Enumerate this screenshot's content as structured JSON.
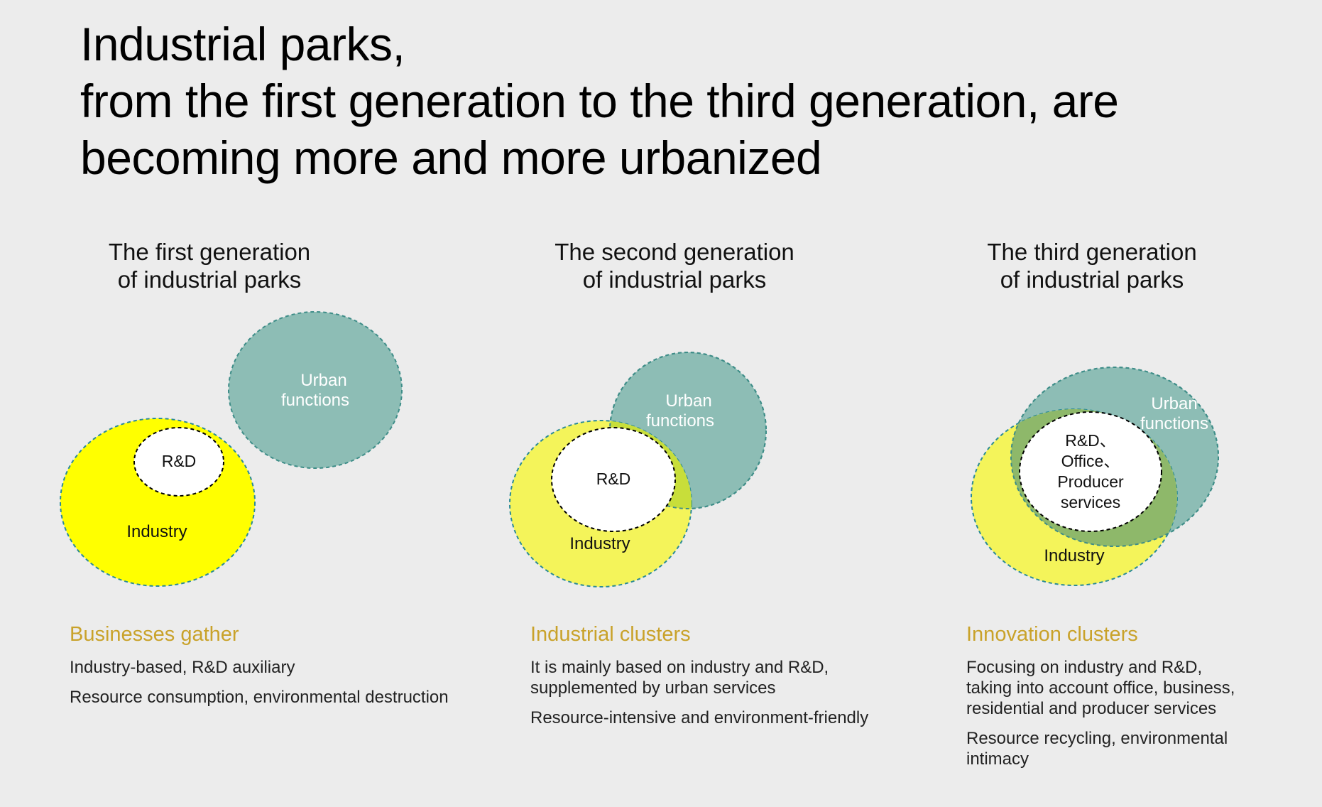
{
  "title": {
    "line1": "Industrial parks,",
    "line2": "from the first generation to the third generation, are",
    "line3": "becoming more and more urbanized"
  },
  "generations": [
    {
      "title_line1": "The first generation",
      "title_line2": "of industrial parks",
      "urban_line1": "Urban",
      "urban_line2": "functions",
      "rd": "R&D",
      "industry": "Industry",
      "heading": "Businesses gather",
      "desc1": "Industry-based, R&D auxiliary",
      "desc2": "Resource consumption, environmental destruction"
    },
    {
      "title_line1": "The second generation",
      "title_line2": "of industrial parks",
      "urban_line1": "Urban",
      "urban_line2": "functions",
      "rd": "R&D",
      "industry": "Industry",
      "heading": "Industrial clusters",
      "desc1_line1": "It is mainly based on industry and R&D,",
      "desc1_line2": "supplemented by urban services",
      "desc2": "Resource-intensive and environment-friendly"
    },
    {
      "title_line1": "The third generation",
      "title_line2": "of industrial parks",
      "urban_line1": "Urban",
      "urban_line2": "functions",
      "rd_line1": "R&D、",
      "rd_line2": "Office、",
      "rd_line3": "Producer",
      "rd_line4": "services",
      "industry": "Industry",
      "heading": "Innovation clusters",
      "desc1_line1": "Focusing on industry and R&D,",
      "desc1_line2": "taking into account office, business,",
      "desc1_line3": "residential and producer services",
      "desc2_line1": "Resource recycling, environmental",
      "desc2_line2": "intimacy"
    }
  ],
  "colors": {
    "industry_bright": "#ffff00",
    "industry_light": "#f4f45a",
    "urban": "#8dbdb5",
    "overlap_light": "#c8de3a",
    "overlap_green": "#8eb86a",
    "heading": "#c9a22a",
    "outline": "#3e8d88"
  }
}
